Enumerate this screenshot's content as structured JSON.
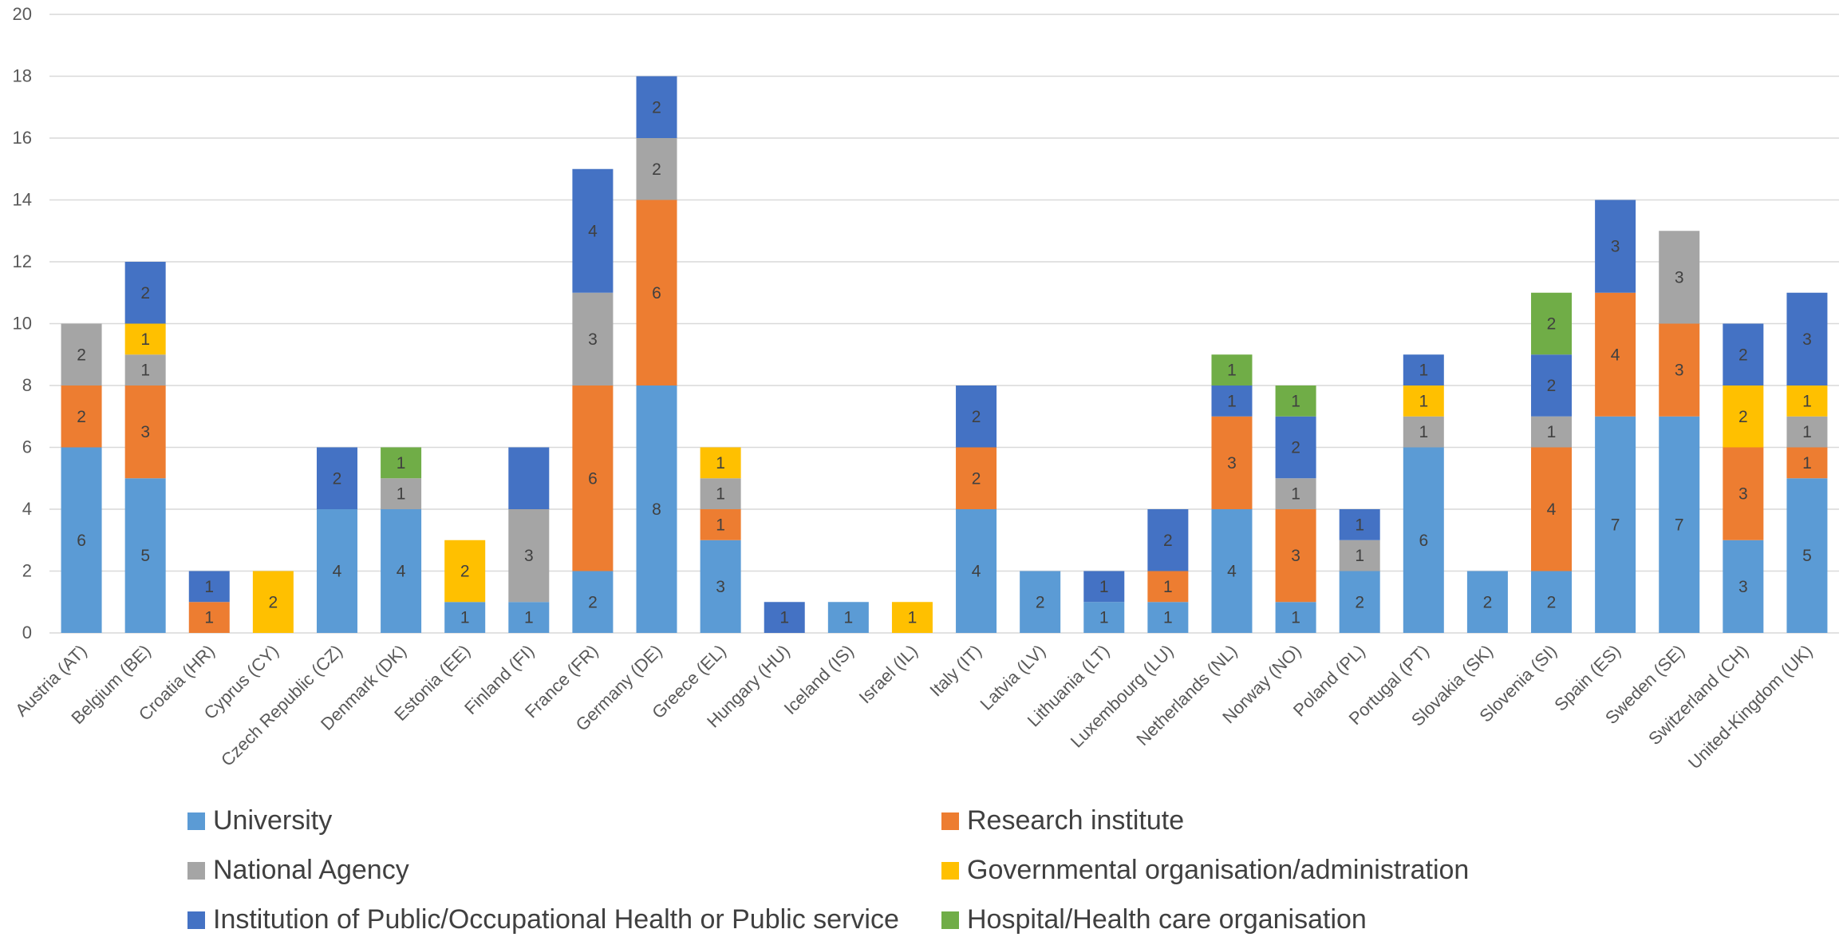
{
  "chart_data": {
    "type": "bar",
    "stacked": true,
    "title": "",
    "xlabel": "",
    "ylabel": "",
    "ylim": [
      0,
      20
    ],
    "yticks": [
      0,
      2,
      4,
      6,
      8,
      10,
      12,
      14,
      16,
      18,
      20
    ],
    "grid": true,
    "legend_position": "bottom",
    "categories": [
      "Austria (AT)",
      "Belgium (BE)",
      "Croatia (HR)",
      "Cyprus (CY)",
      "Czech Republic (CZ)",
      "Denmark (DK)",
      "Estonia (EE)",
      "Finland (FI)",
      "France (FR)",
      "Germany (DE)",
      "Greece (EL)",
      "Hungary (HU)",
      "Iceland (IS)",
      "Israel (IL)",
      "Italy (IT)",
      "Latvia (LV)",
      "Lithuania (LT)",
      "Luxembourg (LU)",
      "Netherlands (NL)",
      "Norway (NO)",
      "Poland (PL)",
      "Portugal (PT)",
      "Slovakia (SK)",
      "Slovenia (SI)",
      "Spain (ES)",
      "Sweden (SE)",
      "Switzerland (CH)",
      "United-Kingdom (UK)"
    ],
    "series": [
      {
        "name": "University",
        "color": "#5B9BD5",
        "values": [
          6,
          5,
          0,
          0,
          4,
          4,
          1,
          1,
          2,
          8,
          3,
          0,
          1,
          0,
          4,
          2,
          1,
          1,
          4,
          1,
          2,
          6,
          2,
          2,
          7,
          7,
          3,
          5
        ]
      },
      {
        "name": "Research institute",
        "color": "#ED7D31",
        "values": [
          2,
          3,
          1,
          0,
          0,
          0,
          0,
          0,
          6,
          6,
          1,
          0,
          0,
          0,
          2,
          0,
          0,
          1,
          3,
          3,
          0,
          0,
          0,
          4,
          4,
          3,
          3,
          1
        ]
      },
      {
        "name": "National Agency",
        "color": "#A5A5A5",
        "values": [
          2,
          1,
          0,
          0,
          0,
          1,
          0,
          3,
          3,
          2,
          1,
          0,
          0,
          0,
          0,
          0,
          0,
          0,
          0,
          1,
          1,
          1,
          0,
          1,
          0,
          3,
          0,
          1
        ]
      },
      {
        "name": "Governmental organisation/administration",
        "color": "#FFC000",
        "values": [
          0,
          1,
          0,
          2,
          0,
          0,
          2,
          0,
          0,
          0,
          1,
          0,
          0,
          1,
          0,
          0,
          0,
          0,
          0,
          0,
          0,
          1,
          0,
          0,
          0,
          0,
          2,
          1
        ]
      },
      {
        "name": "Institution of Public/Occupational Health or Public service",
        "color": "#4472C4",
        "values": [
          0,
          2,
          1,
          0,
          2,
          0,
          0,
          2,
          4,
          2,
          0,
          1,
          0,
          0,
          2,
          0,
          1,
          2,
          1,
          2,
          1,
          1,
          0,
          2,
          3,
          0,
          2,
          3
        ]
      },
      {
        "name": "Hospital/Health care organisation",
        "color": "#70AD47",
        "values": [
          0,
          0,
          0,
          0,
          0,
          1,
          0,
          0,
          0,
          0,
          0,
          0,
          0,
          0,
          0,
          0,
          0,
          0,
          1,
          1,
          0,
          0,
          0,
          2,
          0,
          0,
          0,
          0
        ]
      }
    ],
    "data_labels": {
      "University": [
        6,
        5,
        null,
        null,
        4,
        4,
        1,
        1,
        2,
        8,
        3,
        null,
        1,
        null,
        4,
        2,
        1,
        1,
        4,
        1,
        2,
        6,
        2,
        2,
        7,
        7,
        3,
        5
      ],
      "Research institute": [
        2,
        3,
        1,
        null,
        null,
        null,
        null,
        null,
        6,
        6,
        1,
        null,
        null,
        null,
        2,
        null,
        null,
        1,
        3,
        3,
        null,
        null,
        null,
        4,
        4,
        3,
        3,
        1
      ],
      "National Agency": [
        2,
        1,
        null,
        null,
        null,
        1,
        null,
        3,
        3,
        2,
        1,
        null,
        null,
        null,
        null,
        null,
        null,
        null,
        null,
        1,
        1,
        1,
        null,
        1,
        null,
        3,
        null,
        1
      ],
      "Governmental organisation/administration": [
        null,
        1,
        null,
        2,
        null,
        null,
        2,
        null,
        null,
        null,
        1,
        null,
        null,
        1,
        null,
        null,
        null,
        null,
        null,
        null,
        null,
        1,
        null,
        null,
        null,
        null,
        2,
        1
      ],
      "Institution of Public/Occupational Health or Public service": [
        null,
        2,
        1,
        null,
        2,
        null,
        null,
        null,
        4,
        2,
        null,
        1,
        null,
        null,
        2,
        null,
        1,
        2,
        1,
        2,
        1,
        1,
        null,
        2,
        3,
        null,
        2,
        3
      ],
      "Hospital/Health care organisation": [
        null,
        null,
        null,
        null,
        null,
        1,
        null,
        null,
        null,
        null,
        null,
        null,
        null,
        null,
        null,
        null,
        null,
        null,
        1,
        1,
        null,
        null,
        null,
        2,
        null,
        null,
        null,
        null
      ]
    },
    "legend": [
      "University",
      "Research institute",
      "National Agency",
      "Governmental organisation/administration",
      "Institution of Public/Occupational Health or Public service",
      "Hospital/Health care organisation"
    ],
    "colors": {
      "gridline": "#D9D9D9",
      "axis_text": "#595959",
      "label_text": "#404040"
    }
  }
}
